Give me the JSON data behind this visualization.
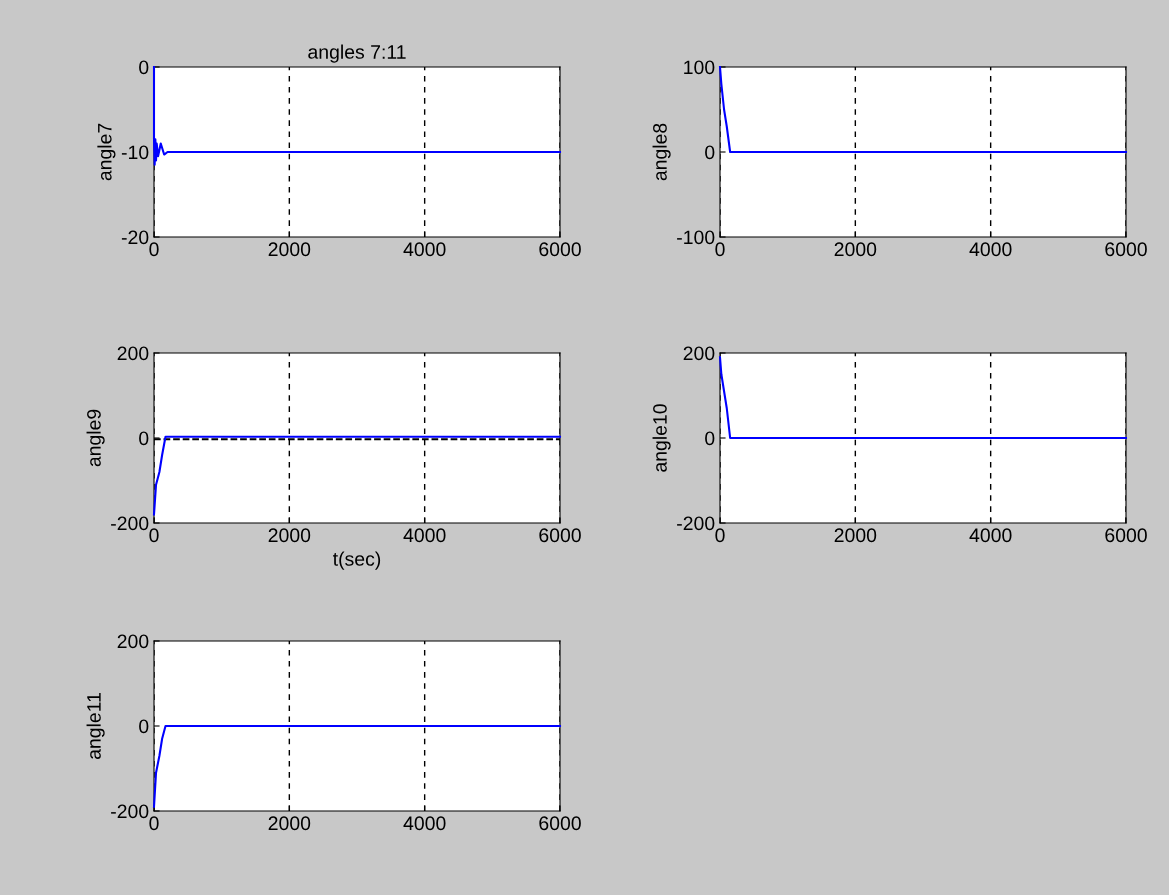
{
  "chart_data": [
    {
      "type": "line",
      "title": "angles 7:11",
      "ylabel": "angle7",
      "x": [
        0,
        0,
        10,
        20,
        30,
        40,
        60,
        100,
        150,
        200,
        250,
        6000
      ],
      "series": [
        {
          "color": "#0000ff",
          "values": [
            0,
            -8.5,
            -11.5,
            -8.5,
            -11,
            -9,
            -10.5,
            -9,
            -10.3,
            -10,
            -10,
            -10
          ]
        }
      ],
      "xlim": [
        0,
        6000
      ],
      "xticks": [
        0,
        2000,
        4000,
        6000
      ],
      "ylim": [
        -20,
        0
      ],
      "yticks": [
        -20,
        -10,
        0
      ],
      "grid": "x",
      "legend": false
    },
    {
      "type": "line",
      "ylabel": "angle8",
      "x": [
        0,
        20,
        60,
        100,
        150,
        6000
      ],
      "series": [
        {
          "color": "#0000ff",
          "values": [
            100,
            80,
            50,
            30,
            0,
            0
          ]
        }
      ],
      "xlim": [
        0,
        6000
      ],
      "xticks": [
        0,
        2000,
        4000,
        6000
      ],
      "ylim": [
        -100,
        100
      ],
      "yticks": [
        -100,
        0,
        100
      ],
      "grid": "x",
      "legend": false
    },
    {
      "type": "line",
      "ylabel": "angle9",
      "xlabel": "t(sec)",
      "x": [
        0,
        30,
        80,
        120,
        170,
        6000
      ],
      "series": [
        {
          "color": "#0000ff",
          "values": [
            -180,
            -110,
            -80,
            -40,
            3,
            3
          ]
        }
      ],
      "xlim": [
        0,
        6000
      ],
      "xticks": [
        0,
        2000,
        4000,
        6000
      ],
      "ylim": [
        -200,
        200
      ],
      "yticks": [
        -200,
        0,
        200
      ],
      "grid": "x",
      "legend": false,
      "ref_lines": [
        {
          "axis": "y",
          "value": -3,
          "color": "#000000",
          "line_style": "dashed"
        }
      ]
    },
    {
      "type": "line",
      "ylabel": "angle10",
      "x": [
        0,
        20,
        60,
        100,
        150,
        6000
      ],
      "series": [
        {
          "color": "#0000ff",
          "values": [
            190,
            150,
            110,
            70,
            0,
            0
          ]
        }
      ],
      "xlim": [
        0,
        6000
      ],
      "xticks": [
        0,
        2000,
        4000,
        6000
      ],
      "ylim": [
        -200,
        200
      ],
      "yticks": [
        -200,
        0,
        200
      ],
      "grid": "x",
      "legend": false
    },
    {
      "type": "line",
      "ylabel": "angle11",
      "x": [
        0,
        30,
        80,
        120,
        170,
        6000
      ],
      "series": [
        {
          "color": "#0000ff",
          "values": [
            -190,
            -110,
            -70,
            -30,
            0,
            0
          ]
        }
      ],
      "xlim": [
        0,
        6000
      ],
      "xticks": [
        0,
        2000,
        4000,
        6000
      ],
      "ylim": [
        -200,
        200
      ],
      "yticks": [
        -200,
        0,
        200
      ],
      "grid": "x",
      "legend": false
    }
  ]
}
